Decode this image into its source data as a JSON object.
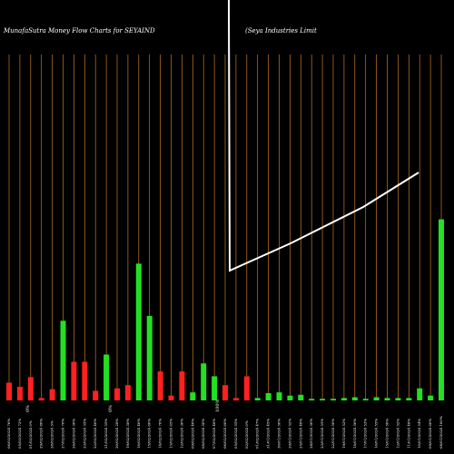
{
  "chart_data": {
    "type": "bar",
    "title": "MunafaSutra  Money Flow  Charts for SEYAIND",
    "subtitle": "(Seya  Industries Limit",
    "colors": {
      "background": "#000000",
      "grid": "#c8781e",
      "up": "#22e022",
      "down": "#ff2020",
      "line": "#ffffff",
      "text": "#ffffff"
    },
    "notes": [
      "0%",
      "0%",
      "100%"
    ],
    "categories": [
      "06/03/2024 76%",
      "05/03/2024 72%",
      "01/03/2024 0%",
      "29/02/2024 80%",
      "28/02/2024 5%",
      "27/02/2024 70%",
      "26/02/2024 30%",
      "23/02/2024 35%",
      "22/02/2024 40%",
      "21/02/2024 55%",
      "20/02/2024 28%",
      "19/02/2024 30%",
      "16/02/2024 40%",
      "15/02/2024 60%",
      "14/02/2024 70%",
      "13/02/2024 65%",
      "12/02/2024 30%",
      "09/02/2024 40%",
      "08/02/2024 50%",
      "07/02/2024 48%",
      "06/02/2024 60%",
      "05/02/2024 55%",
      "02/02/2024 0%",
      "01/02/2024 47%",
      "31/01/2024 45%",
      "30/01/2024 50%",
      "29/01/2024 52%",
      "25/01/2024 48%",
      "24/01/2024 50%",
      "23/01/2024 55%",
      "22/01/2024 50%",
      "19/01/2024 52%",
      "18/01/2024 50%",
      "17/01/2024 53%",
      "16/01/2024 55%",
      "15/01/2024 50%",
      "12/01/2024 52%",
      "11/01/2024 48%",
      "10/01/2024 54%",
      "09/01/2024 60%",
      "08/01/2024 100%"
    ],
    "series": [
      {
        "directions": [
          "down",
          "down",
          "down",
          "down",
          "down",
          "green",
          "down",
          "down",
          "down",
          "green",
          "down",
          "down",
          "green",
          "green",
          "down",
          "down",
          "down",
          "green",
          "green",
          "green",
          "down",
          "down",
          "down",
          "green",
          "green",
          "green",
          "green",
          "green",
          "green",
          "green",
          "green",
          "green",
          "green",
          "green",
          "green",
          "green",
          "green",
          "green",
          "green",
          "green",
          "green"
        ],
        "values": [
          22,
          17,
          29,
          3,
          14,
          99,
          48,
          48,
          12,
          57,
          15,
          19,
          170,
          105,
          36,
          6,
          36,
          10,
          46,
          30,
          19,
          3,
          30,
          3,
          9,
          10,
          6,
          7,
          2,
          2,
          2,
          3,
          4,
          2,
          4,
          3,
          3,
          3,
          15,
          6,
          225
        ]
      }
    ],
    "line": [
      {
        "x": 0,
        "y": 1
      },
      {
        "x": 0,
        "y": 1
      },
      {
        "x": 1,
        "y": 0.6
      },
      {
        "x": 1,
        "y": 0.55
      },
      {
        "x": 8,
        "y": 0.45
      },
      {
        "x": 16,
        "y": 0.6
      },
      {
        "x": 24,
        "y": 0.78
      }
    ],
    "ylim": [
      0,
      440
    ],
    "grid": true
  }
}
